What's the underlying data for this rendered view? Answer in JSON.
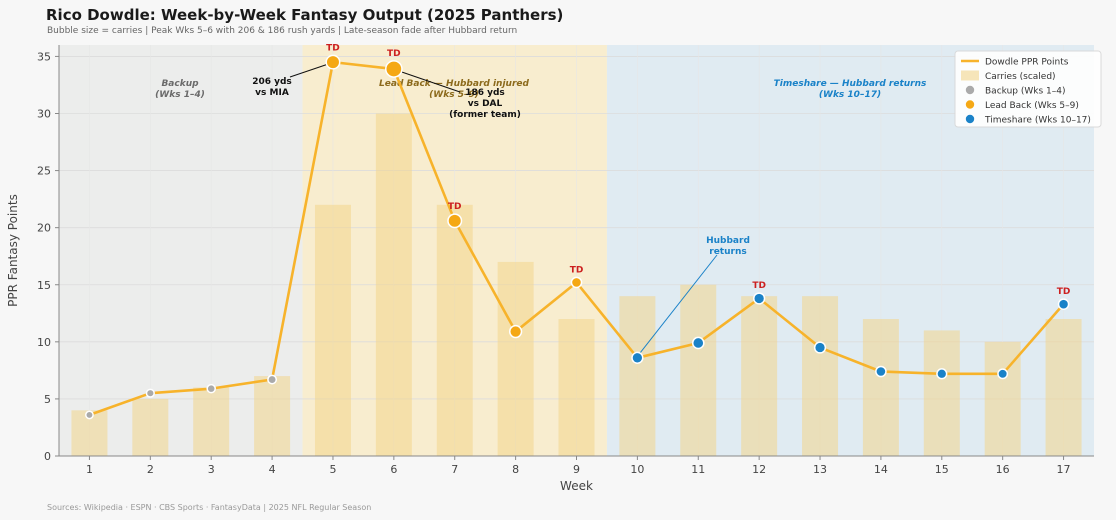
{
  "header": {
    "title": "Rico Dowdle: Week-by-Week Fantasy Output (2025 Panthers)",
    "subtitle": "Bubble size = carries  |  Peak Wks 5–6 with 206 & 186 rush yards  |  Late-season fade after Hubbard return"
  },
  "footer": {
    "sources": "Sources: Wikipedia · ESPN · CBS Sports · FantasyData  |  2025 NFL Regular Season"
  },
  "colors": {
    "backup": "#aaaaaa",
    "lead": "#f5a814",
    "timeshare": "#1a82c8",
    "line": "#f7b32b",
    "bar": "#f2d58c",
    "td": "#cc1f1f"
  },
  "chart_data": {
    "type": "line",
    "xlabel": "Week",
    "ylabel": "PPR Fantasy Points",
    "ylim": [
      0,
      36
    ],
    "yticks": [
      0,
      5,
      10,
      15,
      20,
      25,
      30,
      35
    ],
    "xlim": [
      0.5,
      17.5
    ],
    "grid": true,
    "legend_position": "top-right",
    "legend": [
      {
        "label": "Dowdle PPR Points",
        "kind": "line"
      },
      {
        "label": "Carries (scaled)",
        "kind": "bar"
      },
      {
        "label": "Backup (Wks 1–4)",
        "kind": "backup"
      },
      {
        "label": "Lead Back (Wks 5–9)",
        "kind": "lead"
      },
      {
        "label": "Timeshare (Wks 10–17)",
        "kind": "timeshare"
      }
    ],
    "x": [
      1,
      2,
      3,
      4,
      5,
      6,
      7,
      8,
      9,
      10,
      11,
      12,
      13,
      14,
      15,
      16,
      17
    ],
    "series": [
      {
        "name": "Dowdle PPR Points",
        "values": [
          3.6,
          5.5,
          5.9,
          6.7,
          34.5,
          33.9,
          20.6,
          10.9,
          15.2,
          8.6,
          9.9,
          13.8,
          9.5,
          7.4,
          7.2,
          7.2,
          13.3
        ]
      },
      {
        "name": "Carries (scaled)",
        "values": [
          4,
          5,
          6,
          7,
          22,
          30,
          22,
          17,
          12,
          14,
          15,
          14,
          14,
          12,
          11,
          10,
          12
        ]
      }
    ],
    "phases": [
      {
        "name": "backup",
        "weeks": [
          1,
          2,
          3,
          4
        ],
        "label": "Backup\n(Wks 1–4)"
      },
      {
        "name": "lead",
        "weeks": [
          5,
          6,
          7,
          8,
          9
        ],
        "label": "Lead Back — Hubbard injured\n(Wks 5–9)"
      },
      {
        "name": "timeshare",
        "weeks": [
          10,
          11,
          12,
          13,
          14,
          15,
          16,
          17
        ],
        "label": "Timeshare — Hubbard returns\n(Wks 10–17)"
      }
    ],
    "td_weeks": [
      5,
      6,
      7,
      9,
      12,
      17
    ],
    "td_label": "TD",
    "annotations": [
      {
        "week": 5,
        "text": "206 yds\nvs MIA"
      },
      {
        "week": 6,
        "text": "186 yds\nvs DAL\n(former team)"
      },
      {
        "week": 10,
        "text": "Hubbard\nreturns"
      }
    ]
  }
}
